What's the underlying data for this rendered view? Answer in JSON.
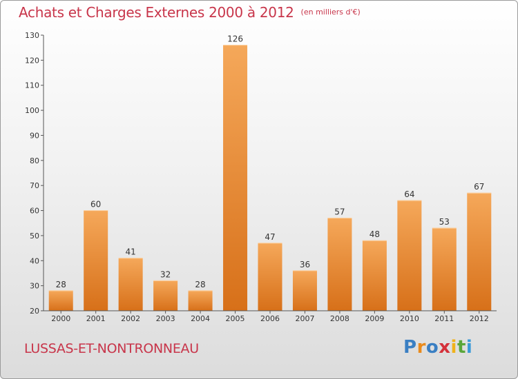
{
  "title": "Achats et Charges Externes 2000 à 2012",
  "unit_label": "(en milliers d'€)",
  "place_name": "LUSSAS-ET-NONTRONNEAU",
  "logo": {
    "letters": [
      "P",
      "r",
      "o",
      "x",
      "i",
      "t",
      "i"
    ],
    "colors": [
      "#3a7fc3",
      "#e98a1c",
      "#3a7fc3",
      "#d4313a",
      "#f0b21a",
      "#5aa63a",
      "#3a9ad8"
    ]
  },
  "colors": {
    "title": "#c8354a",
    "bar_top": "#f5a85a",
    "bar_bottom": "#d77019"
  },
  "chart_data": {
    "type": "bar",
    "title": "Achats et Charges Externes 2000 à 2012",
    "unit": "(en milliers d'€)",
    "categories": [
      "2000",
      "2001",
      "2002",
      "2003",
      "2004",
      "2005",
      "2006",
      "2007",
      "2008",
      "2009",
      "2010",
      "2011",
      "2012"
    ],
    "values": [
      28,
      60,
      41,
      32,
      28,
      126,
      47,
      36,
      57,
      48,
      64,
      53,
      67
    ],
    "data_labels": [
      "28",
      "60",
      "41",
      "32",
      "28",
      "126",
      "47",
      "36",
      "57",
      "48",
      "64",
      "53",
      "67"
    ],
    "ylim": [
      20,
      130
    ],
    "yticks": [
      "20",
      "30",
      "40",
      "50",
      "60",
      "70",
      "80",
      "90",
      "100",
      "110",
      "120",
      "130"
    ],
    "grid": false,
    "legend": "none"
  }
}
